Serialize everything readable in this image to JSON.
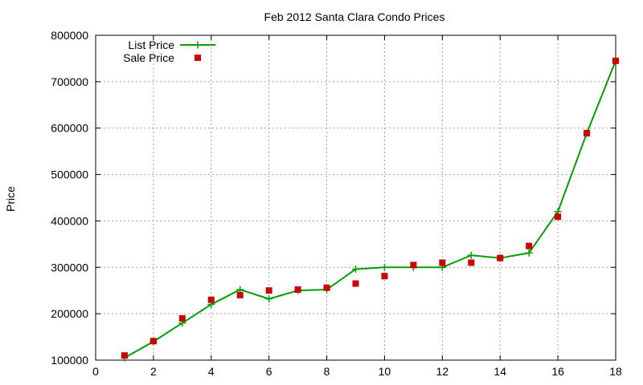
{
  "chart_data": {
    "type": "line",
    "title": "Feb 2012 Santa Clara Condo Prices",
    "xlabel": "",
    "ylabel": "Price",
    "xlim": [
      0,
      18
    ],
    "ylim": [
      100000,
      800000
    ],
    "xticks": [
      0,
      2,
      4,
      6,
      8,
      10,
      12,
      14,
      16,
      18
    ],
    "yticks": [
      100000,
      200000,
      300000,
      400000,
      500000,
      600000,
      700000,
      800000
    ],
    "grid": true,
    "legend_position": "top-left",
    "series": [
      {
        "name": "List Price",
        "style": "line-with-plus-markers",
        "color": "#00a000",
        "x": [
          1,
          2,
          3,
          4,
          5,
          6,
          7,
          8,
          9,
          10,
          11,
          12,
          13,
          14,
          15,
          16,
          17,
          18
        ],
        "y": [
          105000,
          140000,
          180000,
          220000,
          252000,
          232000,
          250000,
          252000,
          296000,
          300000,
          300000,
          300000,
          326000,
          320000,
          331000,
          420000,
          589000,
          745000
        ]
      },
      {
        "name": "Sale Price",
        "style": "square-markers",
        "color": "#cc0000",
        "x": [
          1,
          2,
          3,
          4,
          5,
          6,
          7,
          8,
          9,
          10,
          11,
          12,
          13,
          14,
          15,
          16,
          17,
          18
        ],
        "y": [
          110000,
          141000,
          190000,
          230000,
          240000,
          250000,
          252000,
          256000,
          265000,
          281000,
          305000,
          310000,
          310000,
          320000,
          346000,
          409000,
          589000,
          745000
        ]
      }
    ]
  }
}
